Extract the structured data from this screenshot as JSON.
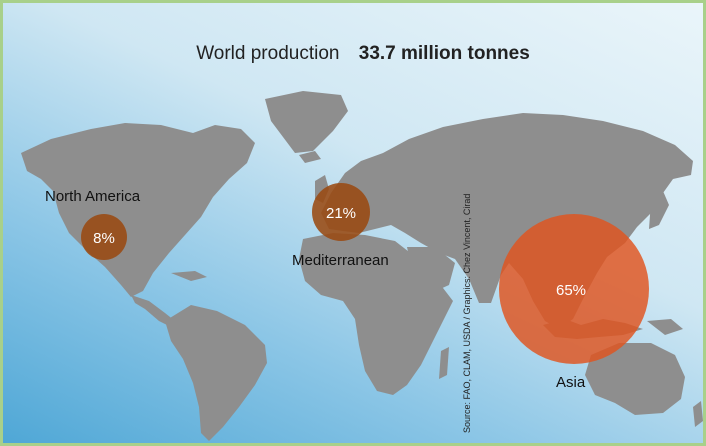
{
  "title": {
    "label": "World production",
    "amount": "33.7 million tonnes"
  },
  "regions": [
    {
      "name": "North America",
      "share": "8%"
    },
    {
      "name": "Mediterranean",
      "share": "21%"
    },
    {
      "name": "Asia",
      "share": "65%"
    }
  ],
  "source": "Source: FAO, CLAM, USDA / Graphics: Chez Vincent, Cirad",
  "colors": {
    "land": "#8e8e8e",
    "bubble_small": "#9a4a12",
    "bubble_large": "#e0531d",
    "border": "#a8d08a"
  }
}
